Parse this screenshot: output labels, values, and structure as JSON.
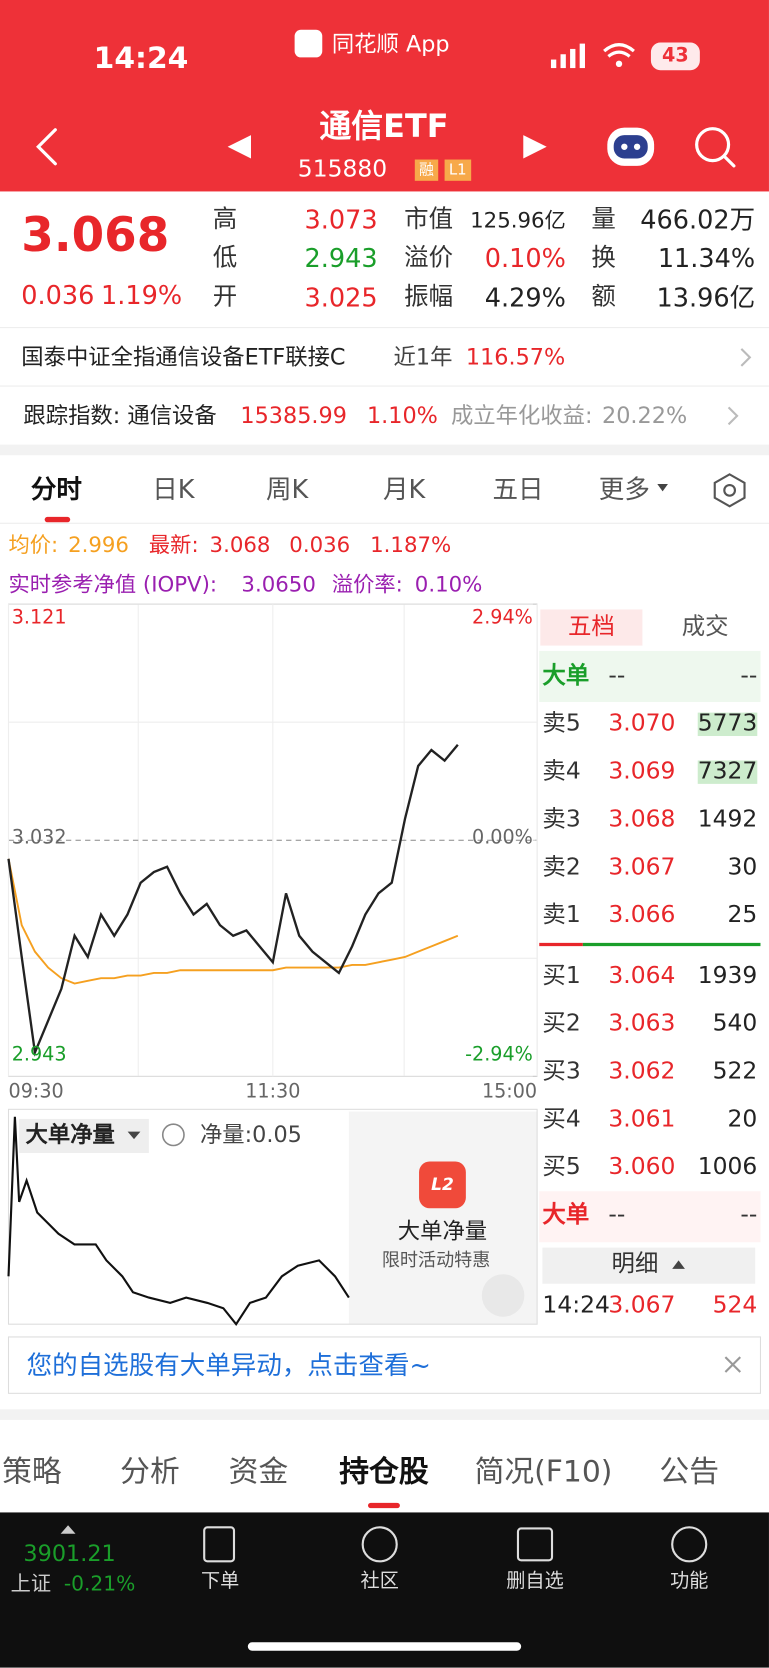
{
  "status_bar": {
    "time": "14:24",
    "app": "同花顺 App",
    "battery": "43"
  },
  "header": {
    "title": "通信ETF",
    "code": "515880",
    "badges": [
      "融",
      "L1"
    ]
  },
  "quote": {
    "price": "3.068",
    "change": "0.036",
    "change_pct": "1.19%",
    "stats": [
      [
        {
          "label": "高",
          "value": "3.073"
        },
        {
          "label": "市值",
          "value": "125.96亿"
        },
        {
          "label": "量",
          "value": "466.02万"
        }
      ],
      [
        {
          "label": "低",
          "value": "2.943"
        },
        {
          "label": "溢价",
          "value": "0.10%"
        },
        {
          "label": "换",
          "value": "11.34%"
        }
      ],
      [
        {
          "label": "开",
          "value": "3.025"
        },
        {
          "label": "振幅",
          "value": "4.29%"
        },
        {
          "label": "额",
          "value": "13.96亿"
        }
      ]
    ]
  },
  "fund_link": {
    "name": "国泰中证全指通信设备ETF联接C",
    "period": "近1年",
    "return": "116.57%"
  },
  "tracking": {
    "label": "跟踪指数: 通信设备",
    "value": "15385.99",
    "change": "1.10%",
    "annual_label": "成立年化收益:",
    "annual": "20.22%"
  },
  "tabs": [
    "分时",
    "日K",
    "周K",
    "月K",
    "五日",
    "更多"
  ],
  "info_lines": {
    "avg_label": "均价:",
    "avg": "2.996",
    "latest_label": "最新:",
    "latest": "3.068",
    "change": "0.036",
    "change_pct": "1.187%",
    "iopv_label": "实时参考净值 (IOPV):",
    "iopv": "3.0650",
    "premium_label": "溢价率:",
    "premium": "0.10%"
  },
  "chart_data": {
    "type": "line",
    "xlim": [
      0,
      240
    ],
    "xticks": [
      {
        "value": 0,
        "label": "09:30"
      },
      {
        "value": 120,
        "label": "11:30"
      },
      {
        "value": 240,
        "label": "15:00"
      }
    ],
    "ylim": [
      2.943,
      3.121
    ],
    "yticks": [
      2.943,
      3.032,
      3.121
    ],
    "y2lim": [
      -2.94,
      2.94
    ],
    "y2ticks": [
      {
        "value": -2.94,
        "label": "-2.94%"
      },
      {
        "value": 0,
        "label": "0.00%"
      },
      {
        "value": 2.94,
        "label": "2.94%"
      }
    ],
    "x": [
      0,
      6,
      12,
      18,
      24,
      30,
      36,
      42,
      48,
      54,
      60,
      66,
      72,
      78,
      84,
      90,
      96,
      102,
      108,
      114,
      120,
      126,
      132,
      138,
      144,
      150,
      156,
      162,
      168,
      174,
      180,
      186,
      192,
      198,
      204
    ],
    "series": [
      {
        "color": "#222222",
        "values": [
          3.025,
          2.988,
          2.952,
          2.964,
          2.976,
          2.996,
          2.988,
          3.004,
          2.996,
          3.004,
          3.016,
          3.02,
          3.022,
          3.012,
          3.004,
          3.008,
          3.0,
          2.996,
          2.998,
          2.992,
          2.986,
          3.012,
          2.996,
          2.99,
          2.986,
          2.982,
          2.992,
          3.004,
          3.012,
          3.016,
          3.04,
          3.06,
          3.066,
          3.062,
          3.068
        ]
      },
      {
        "color": "#f5a020",
        "values": [
          3.025,
          3.0,
          2.99,
          2.984,
          2.98,
          2.978,
          2.979,
          2.98,
          2.98,
          2.981,
          2.981,
          2.982,
          2.982,
          2.983,
          2.983,
          2.983,
          2.983,
          2.983,
          2.983,
          2.983,
          2.983,
          2.984,
          2.984,
          2.984,
          2.984,
          2.984,
          2.985,
          2.985,
          2.986,
          2.987,
          2.988,
          2.99,
          2.992,
          2.994,
          2.996
        ]
      }
    ],
    "grid": true
  },
  "order_book": {
    "tabs": [
      "五档",
      "成交"
    ],
    "big_top": {
      "label": "大单",
      "a": "--",
      "b": "--"
    },
    "asks": [
      {
        "label": "卖5",
        "price": "3.070",
        "volume": "5773"
      },
      {
        "label": "卖4",
        "price": "3.069",
        "volume": "7327"
      },
      {
        "label": "卖3",
        "price": "3.068",
        "volume": "1492"
      },
      {
        "label": "卖2",
        "price": "3.067",
        "volume": "30"
      },
      {
        "label": "卖1",
        "price": "3.066",
        "volume": "25"
      }
    ],
    "bids": [
      {
        "label": "买1",
        "price": "3.064",
        "volume": "1939"
      },
      {
        "label": "买2",
        "price": "3.063",
        "volume": "540"
      },
      {
        "label": "买3",
        "price": "3.062",
        "volume": "522"
      },
      {
        "label": "买4",
        "price": "3.061",
        "volume": "20"
      },
      {
        "label": "买5",
        "price": "3.060",
        "volume": "1006"
      }
    ],
    "big_bottom": {
      "label": "大单",
      "a": "--",
      "b": "--"
    },
    "detail_label": "明细",
    "trade": {
      "time": "14:24",
      "price": "3.067",
      "volume": "524"
    }
  },
  "net_panel": {
    "selector": "大单净量",
    "net_label": "净量:0.05",
    "promo_badge": "L2",
    "promo_title": "大单净量",
    "promo_sub": "限时活动特惠"
  },
  "notice": "您的自选股有大单异动，点击查看~",
  "bottom_tabs": [
    "策略",
    "分析",
    "资金",
    "持仓股",
    "简况(F10)",
    "公告"
  ],
  "footer": {
    "index_value": "3901.21",
    "index_name": "上证",
    "index_change": "-0.21%",
    "buttons": [
      "下单",
      "社区",
      "删自选",
      "功能"
    ]
  }
}
